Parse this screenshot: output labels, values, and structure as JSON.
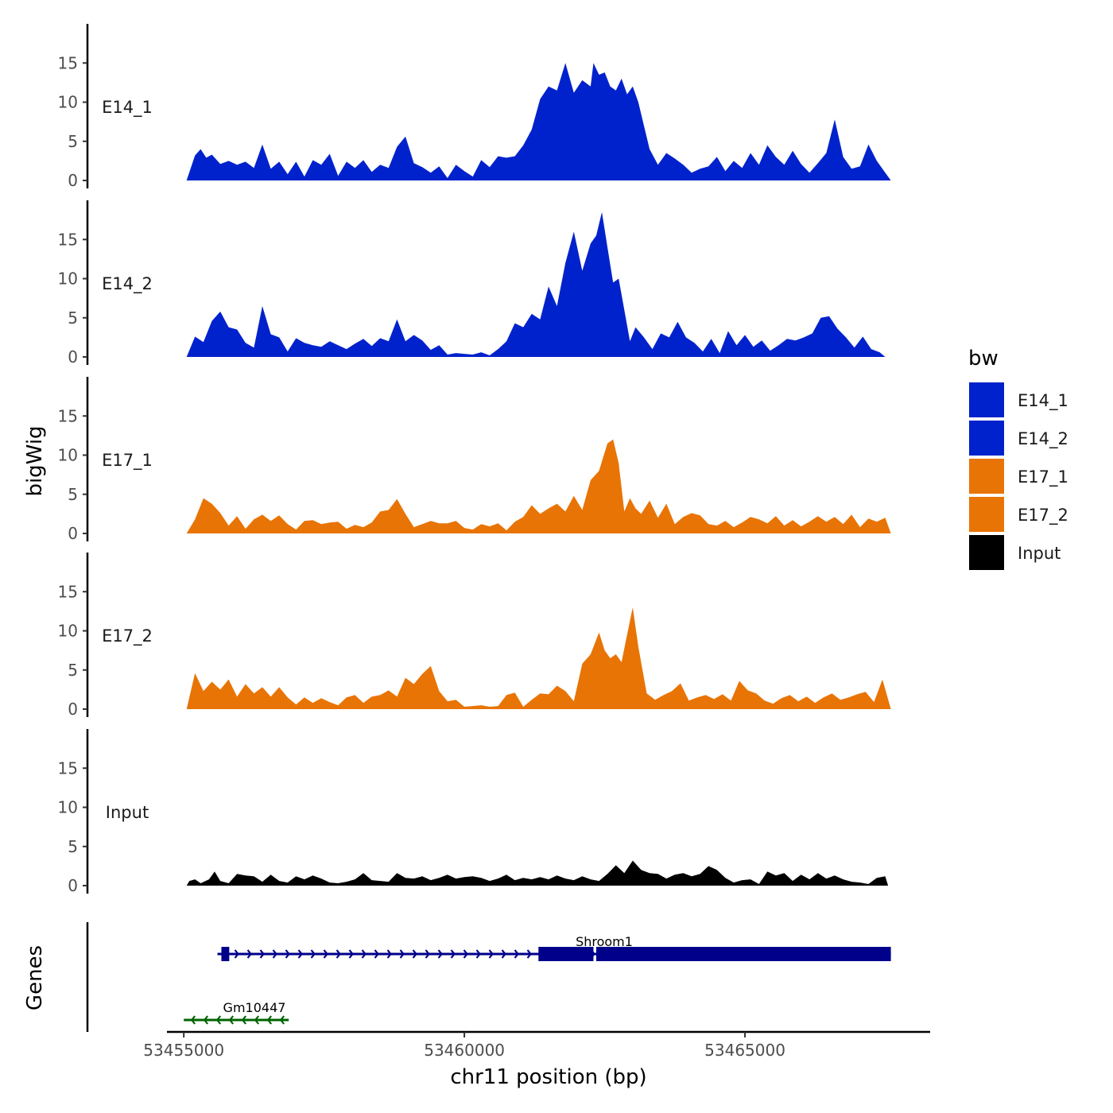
{
  "chart_data": {
    "type": "area",
    "ylabel": "bigWig",
    "xlabel": "chr11 position (bp)",
    "xlim": [
      53454700,
      53468300
    ],
    "x_ticks": [
      53455000,
      53460000,
      53465000
    ],
    "x_tick_labels": [
      "53455000",
      "53460000",
      "53465000"
    ],
    "y_ticks": [
      0,
      5,
      10,
      15
    ],
    "y_tick_labels": [
      "0",
      "5",
      "10",
      "15"
    ],
    "ylim": [
      0,
      20
    ],
    "gene_track_label": "Genes",
    "legend": {
      "title": "bw",
      "placement": "right",
      "entries": [
        {
          "name": "E14_1",
          "color": "#0022cc"
        },
        {
          "name": "E14_2",
          "color": "#0022cc"
        },
        {
          "name": "E17_1",
          "color": "#e87405"
        },
        {
          "name": "E17_2",
          "color": "#e87405"
        },
        {
          "name": "Input",
          "color": "#000000"
        }
      ]
    },
    "series": [
      {
        "name": "E14_1",
        "color": "#0022cc",
        "x": [
          53455050,
          53455200,
          53455300,
          53455400,
          53455500,
          53455650,
          53455800,
          53455950,
          53456100,
          53456250,
          53456400,
          53456550,
          53456700,
          53456850,
          53457000,
          53457150,
          53457300,
          53457450,
          53457600,
          53457750,
          53457900,
          53458050,
          53458200,
          53458350,
          53458500,
          53458650,
          53458800,
          53458950,
          53459100,
          53459250,
          53459400,
          53459550,
          53459700,
          53459850,
          53460000,
          53460150,
          53460300,
          53460450,
          53460600,
          53460750,
          53460900,
          53461050,
          53461200,
          53461350,
          53461500,
          53461650,
          53461800,
          53461950,
          53462100,
          53462250,
          53462300,
          53462400,
          53462500,
          53462600,
          53462700,
          53462800,
          53462900,
          53463000,
          53463100,
          53463200,
          53463300,
          53463450,
          53463600,
          53463750,
          53463900,
          53464050,
          53464200,
          53464350,
          53464500,
          53464650,
          53464800,
          53464950,
          53465100,
          53465250,
          53465400,
          53465550,
          53465700,
          53465850,
          53466000,
          53466150,
          53466300,
          53466450,
          53466600,
          53466750,
          53466900,
          53467050,
          53467200,
          53467350,
          53467500,
          53467600
        ],
        "values": [
          0,
          3.2,
          4,
          2.9,
          3.3,
          2.1,
          2.5,
          2.0,
          2.4,
          1.6,
          4.6,
          1.5,
          2.4,
          0.8,
          2.4,
          0.5,
          2.6,
          2.0,
          3.4,
          0.6,
          2.4,
          1.6,
          2.6,
          1.1,
          2.0,
          1.6,
          4.3,
          5.6,
          2.2,
          1.7,
          1.0,
          1.8,
          0.3,
          2.0,
          1.2,
          0.5,
          2.6,
          1.7,
          3.1,
          2.9,
          3.1,
          4.5,
          6.5,
          10.4,
          12.0,
          11.5,
          15.0,
          11.2,
          12.8,
          12.0,
          15.0,
          13.5,
          13.8,
          12.0,
          11.5,
          13.0,
          11.0,
          12.0,
          10.0,
          7.0,
          4.0,
          2.0,
          3.5,
          2.8,
          2.0,
          1.0,
          1.5,
          1.8,
          3.0,
          1.2,
          2.5,
          1.6,
          3.5,
          2.0,
          4.5,
          3.0,
          2.0,
          3.8,
          2.1,
          1.0,
          2.2,
          3.5,
          7.8,
          3.0,
          1.5,
          1.8,
          4.6,
          2.5,
          1.0,
          0
        ]
      },
      {
        "name": "E14_2",
        "color": "#0022cc",
        "x": [
          53455050,
          53455200,
          53455350,
          53455500,
          53455650,
          53455800,
          53455950,
          53456100,
          53456250,
          53456400,
          53456550,
          53456700,
          53456850,
          53457000,
          53457150,
          53457300,
          53457450,
          53457600,
          53457750,
          53457900,
          53458050,
          53458200,
          53458350,
          53458500,
          53458650,
          53458800,
          53458950,
          53459100,
          53459250,
          53459400,
          53459550,
          53459700,
          53459850,
          53460000,
          53460150,
          53460300,
          53460450,
          53460600,
          53460750,
          53460900,
          53461050,
          53461200,
          53461350,
          53461500,
          53461650,
          53461800,
          53461950,
          53462100,
          53462250,
          53462350,
          53462450,
          53462550,
          53462650,
          53462750,
          53462850,
          53462950,
          53463050,
          53463200,
          53463350,
          53463500,
          53463650,
          53463800,
          53463950,
          53464100,
          53464250,
          53464400,
          53464550,
          53464700,
          53464850,
          53465000,
          53465150,
          53465300,
          53465450,
          53465600,
          53465750,
          53465900,
          53466050,
          53466200,
          53466350,
          53466500,
          53466650,
          53466800,
          53466950,
          53467100,
          53467250,
          53467400,
          53467500
        ],
        "values": [
          0,
          2.6,
          1.9,
          4.6,
          5.8,
          3.8,
          3.5,
          1.8,
          1.2,
          6.5,
          2.9,
          2.5,
          0.7,
          2.4,
          1.8,
          1.5,
          1.3,
          2.0,
          1.5,
          1.0,
          1.7,
          2.3,
          1.4,
          2.4,
          2.0,
          4.8,
          2.0,
          2.8,
          2.1,
          0.9,
          1.5,
          0.3,
          0.5,
          0.4,
          0.3,
          0.6,
          0.2,
          1.0,
          2.0,
          4.3,
          3.8,
          5.5,
          4.8,
          9.0,
          6.5,
          12.0,
          16.0,
          11.0,
          14.5,
          15.5,
          18.5,
          14.0,
          9.5,
          10.0,
          6.0,
          2.0,
          3.8,
          2.5,
          1.0,
          3.0,
          2.5,
          4.5,
          2.5,
          1.8,
          0.7,
          2.3,
          0.5,
          3.3,
          1.5,
          2.8,
          1.3,
          2.1,
          0.8,
          1.5,
          2.3,
          2.1,
          2.5,
          3.0,
          5.0,
          5.2,
          3.6,
          2.5,
          1.2,
          2.6,
          1.0,
          0.6,
          0
        ]
      },
      {
        "name": "E17_1",
        "color": "#e87405",
        "x": [
          53455050,
          53455200,
          53455350,
          53455500,
          53455650,
          53455800,
          53455950,
          53456100,
          53456250,
          53456400,
          53456550,
          53456700,
          53456850,
          53457000,
          53457150,
          53457300,
          53457450,
          53457600,
          53457750,
          53457900,
          53458050,
          53458200,
          53458350,
          53458500,
          53458650,
          53458800,
          53458950,
          53459100,
          53459250,
          53459400,
          53459550,
          53459700,
          53459850,
          53460000,
          53460150,
          53460300,
          53460450,
          53460600,
          53460750,
          53460900,
          53461050,
          53461200,
          53461350,
          53461500,
          53461650,
          53461800,
          53461950,
          53462100,
          53462250,
          53462400,
          53462550,
          53462650,
          53462750,
          53462850,
          53462950,
          53463050,
          53463150,
          53463300,
          53463450,
          53463600,
          53463750,
          53463900,
          53464050,
          53464200,
          53464350,
          53464500,
          53464650,
          53464800,
          53464950,
          53465100,
          53465250,
          53465400,
          53465550,
          53465700,
          53465850,
          53466000,
          53466150,
          53466300,
          53466450,
          53466600,
          53466750,
          53466900,
          53467050,
          53467200,
          53467350,
          53467500,
          53467600
        ],
        "values": [
          0,
          1.8,
          4.5,
          3.8,
          2.6,
          1.0,
          2.2,
          0.6,
          1.8,
          2.4,
          1.6,
          2.3,
          1.2,
          0.5,
          1.6,
          1.7,
          1.2,
          1.4,
          1.5,
          0.6,
          1.1,
          0.8,
          1.4,
          2.8,
          3.0,
          4.4,
          2.5,
          0.8,
          1.2,
          1.6,
          1.3,
          1.3,
          1.6,
          0.7,
          0.5,
          1.2,
          0.9,
          1.3,
          0.4,
          1.5,
          2.1,
          3.6,
          2.5,
          3.2,
          3.8,
          2.8,
          4.8,
          3.0,
          6.8,
          8.0,
          11.5,
          12.0,
          9.0,
          2.8,
          4.5,
          3.2,
          2.5,
          4.2,
          2.0,
          3.8,
          1.2,
          2.1,
          2.6,
          2.3,
          1.2,
          1.0,
          1.6,
          0.8,
          1.4,
          2.1,
          1.8,
          1.3,
          2.2,
          1.0,
          1.7,
          0.9,
          1.5,
          2.2,
          1.5,
          2.1,
          1.2,
          2.4,
          0.8,
          1.9,
          1.5,
          2.0,
          0
        ]
      },
      {
        "name": "E17_2",
        "color": "#e87405",
        "x": [
          53455050,
          53455200,
          53455350,
          53455500,
          53455650,
          53455800,
          53455950,
          53456100,
          53456250,
          53456400,
          53456550,
          53456700,
          53456850,
          53457000,
          53457150,
          53457300,
          53457450,
          53457600,
          53457750,
          53457900,
          53458050,
          53458200,
          53458350,
          53458500,
          53458650,
          53458800,
          53458950,
          53459100,
          53459250,
          53459400,
          53459550,
          53459700,
          53459850,
          53460000,
          53460150,
          53460300,
          53460450,
          53460600,
          53460750,
          53460900,
          53461050,
          53461200,
          53461350,
          53461500,
          53461650,
          53461800,
          53461950,
          53462100,
          53462250,
          53462400,
          53462500,
          53462600,
          53462700,
          53462800,
          53462900,
          53463000,
          53463100,
          53463250,
          53463400,
          53463550,
          53463700,
          53463850,
          53464000,
          53464150,
          53464300,
          53464450,
          53464600,
          53464750,
          53464900,
          53465050,
          53465200,
          53465350,
          53465500,
          53465650,
          53465800,
          53465950,
          53466100,
          53466250,
          53466400,
          53466550,
          53466700,
          53466850,
          53467000,
          53467150,
          53467300,
          53467450,
          53467600
        ],
        "values": [
          0,
          4.6,
          2.3,
          3.5,
          2.5,
          3.8,
          1.6,
          3.2,
          2.0,
          2.8,
          1.6,
          2.8,
          1.5,
          0.6,
          1.5,
          0.8,
          1.4,
          0.9,
          0.5,
          1.5,
          1.8,
          0.8,
          1.6,
          1.8,
          2.4,
          1.6,
          4.0,
          3.2,
          4.5,
          5.5,
          2.3,
          1.0,
          1.2,
          0.3,
          0.4,
          0.5,
          0.3,
          0.4,
          1.8,
          2.1,
          0.3,
          1.2,
          2.0,
          1.9,
          3.0,
          2.3,
          1.0,
          5.8,
          7.0,
          9.8,
          7.5,
          6.5,
          7.0,
          6.0,
          9.5,
          13.0,
          8.0,
          2.0,
          1.2,
          1.8,
          2.3,
          3.3,
          1.1,
          1.5,
          1.8,
          1.3,
          1.9,
          1.1,
          3.6,
          2.4,
          2.0,
          1.1,
          0.7,
          1.4,
          1.8,
          1.0,
          1.6,
          0.8,
          1.5,
          2.0,
          1.2,
          1.5,
          1.9,
          2.2,
          0.9,
          3.8,
          0
        ]
      },
      {
        "name": "Input",
        "color": "#000000",
        "x": [
          53455050,
          53455100,
          53455200,
          53455300,
          53455450,
          53455550,
          53455650,
          53455800,
          53455950,
          53456100,
          53456250,
          53456400,
          53456550,
          53456700,
          53456850,
          53457000,
          53457150,
          53457300,
          53457450,
          53457600,
          53457750,
          53457900,
          53458050,
          53458200,
          53458350,
          53458500,
          53458650,
          53458800,
          53458950,
          53459100,
          53459250,
          53459400,
          53459550,
          53459700,
          53459850,
          53460000,
          53460150,
          53460300,
          53460450,
          53460600,
          53460750,
          53460900,
          53461050,
          53461200,
          53461350,
          53461500,
          53461650,
          53461800,
          53461950,
          53462100,
          53462250,
          53462400,
          53462550,
          53462700,
          53462850,
          53463000,
          53463150,
          53463300,
          53463450,
          53463600,
          53463750,
          53463900,
          53464050,
          53464200,
          53464350,
          53464500,
          53464650,
          53464800,
          53464950,
          53465100,
          53465250,
          53465400,
          53465550,
          53465700,
          53465850,
          53466000,
          53466150,
          53466300,
          53466450,
          53466600,
          53466750,
          53466900,
          53467050,
          53467200,
          53467350,
          53467500,
          53467550
        ],
        "values": [
          0,
          0.6,
          0.8,
          0.3,
          0.8,
          1.8,
          0.6,
          0.3,
          1.5,
          1.3,
          1.2,
          0.5,
          1.4,
          0.6,
          0.4,
          1.2,
          0.8,
          1.3,
          0.9,
          0.4,
          0.3,
          0.5,
          0.8,
          1.6,
          0.7,
          0.6,
          0.5,
          1.6,
          1.0,
          0.9,
          1.2,
          0.7,
          1.0,
          1.4,
          0.9,
          1.1,
          1.2,
          1.0,
          0.6,
          0.9,
          1.4,
          0.7,
          1.0,
          0.8,
          1.1,
          0.8,
          1.3,
          0.9,
          0.7,
          1.2,
          0.8,
          0.6,
          1.5,
          2.6,
          1.6,
          3.2,
          2.0,
          1.6,
          1.5,
          0.9,
          1.4,
          1.6,
          1.2,
          1.5,
          2.5,
          2.0,
          1.0,
          0.4,
          0.7,
          0.8,
          0.2,
          1.8,
          1.3,
          1.6,
          0.6,
          1.4,
          0.8,
          1.6,
          0.9,
          1.3,
          0.8,
          0.5,
          0.4,
          0.2,
          1.0,
          1.2,
          0
        ]
      }
    ],
    "genes": [
      {
        "name": "Shroom1",
        "strand": "+",
        "color": "#00008b",
        "start": 53455600,
        "end": 53467600,
        "exons": [
          [
            53455670,
            53455810
          ],
          [
            53461320,
            53462300
          ],
          [
            53462350,
            53467600
          ]
        ]
      },
      {
        "name": "Gm10447",
        "strand": "-",
        "color": "#006400",
        "start": 53455000,
        "end": 53456870,
        "exons": []
      }
    ]
  }
}
